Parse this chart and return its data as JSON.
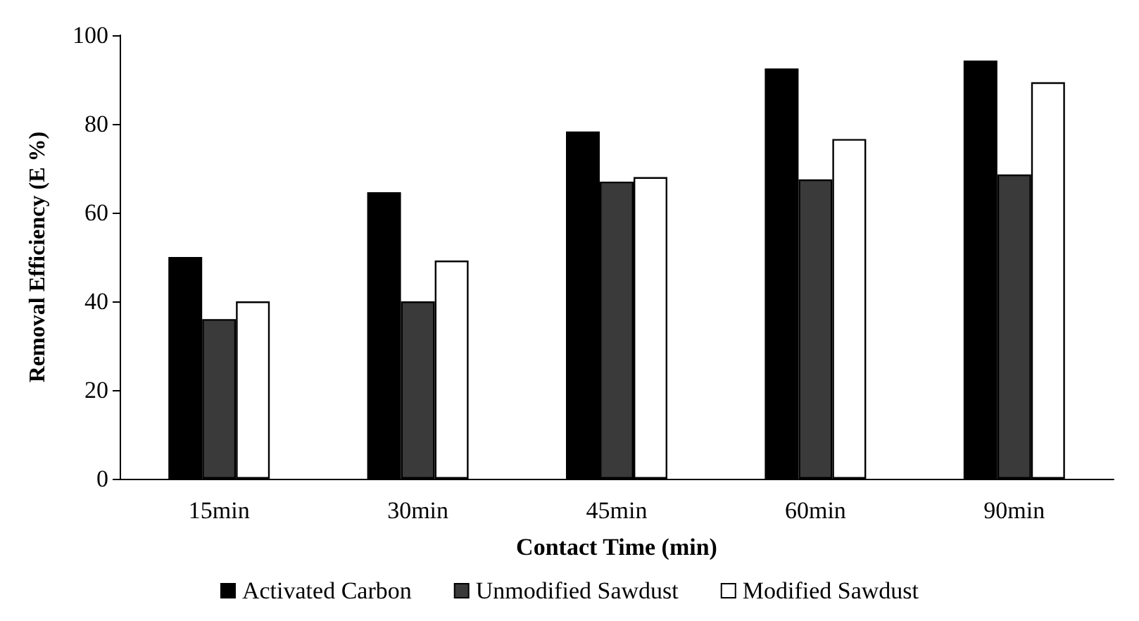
{
  "chart_data": {
    "type": "bar",
    "xlabel": "Contact Time (min)",
    "ylabel": "Removal Efficiency (E %)",
    "categories": [
      "15min",
      "30min",
      "45min",
      "60min",
      "90min"
    ],
    "series": [
      {
        "name": "Activated Carbon",
        "color": "#000000",
        "values": [
          50,
          64.6,
          78.3,
          92.5,
          94.3
        ]
      },
      {
        "name": "Unmodified Sawdust",
        "color": "#3a3a3a",
        "values": [
          36,
          40,
          67,
          67.5,
          68.6
        ]
      },
      {
        "name": "Modified Sawdust",
        "color": "#ffffff",
        "values": [
          40,
          49.2,
          68,
          76.6,
          89.4
        ]
      }
    ],
    "ylim": [
      0,
      100
    ],
    "yticks": [
      0,
      20,
      40,
      60,
      80,
      100
    ],
    "grid": false,
    "legend": "bottom"
  }
}
